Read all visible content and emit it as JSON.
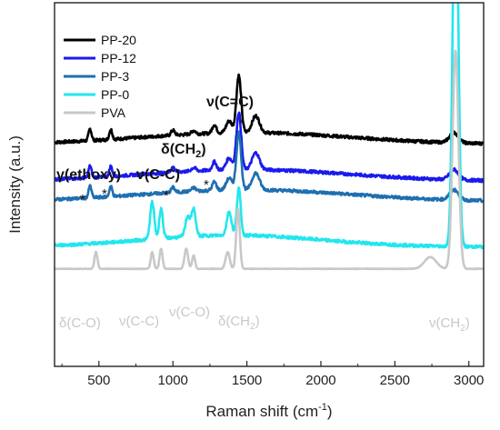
{
  "chart_data": {
    "type": "line",
    "xlabel": "Raman shift (cm",
    "xlabel_sup": "-1",
    "xlabel_end": ")",
    "ylabel": "Intensity (a.u.)",
    "xlim": [
      200,
      3100
    ],
    "xticks": [
      500,
      1000,
      1500,
      2000,
      2500,
      3000
    ],
    "xtick_labels": [
      "500",
      "1000",
      "1500",
      "2000",
      "2500",
      "3000"
    ],
    "y_ticks_shown": false,
    "grid": false,
    "legend_position": "top-left",
    "series": [
      {
        "name": "PP-20",
        "color": "#000000",
        "offset": 6.6,
        "profile": "composite"
      },
      {
        "name": "PP-12",
        "color": "#1a1aee",
        "offset": 5.5,
        "profile": "composite"
      },
      {
        "name": "PP-3",
        "color": "#1f6fb0",
        "offset": 4.9,
        "profile": "composite"
      },
      {
        "name": "PP-0",
        "color": "#22e6ee",
        "offset": 3.55,
        "profile": "pp0"
      },
      {
        "name": "PVA",
        "color": "#c8c8c8",
        "offset": 2.85,
        "profile": "pva"
      }
    ],
    "peaks_cm-1": [
      440,
      580,
      860,
      920,
      1000,
      1140,
      1280,
      1380,
      1445,
      1560,
      2880,
      2910
    ],
    "annotations": {
      "gamma_ethoxy": "γ(ethoxy)",
      "nu_cc_top": "ν(C-C)",
      "delta_ch2_top": "δ(CH",
      "delta_ch2_top_sub": "2",
      "delta_ch2_top_end": ")",
      "nu_c_eq_c": "ν(C=C)",
      "star": "*",
      "delta_co": "δ(C-O)",
      "nu_cc_bottom": "ν(C-C)",
      "nu_co_bottom": "ν(C-O)",
      "delta_ch2_bottom": "δ(CH",
      "delta_ch2_bottom_sub": "2",
      "delta_ch2_bottom_end": ")",
      "nu_ch2": "ν(CH",
      "nu_ch2_sub": "2",
      "nu_ch2_end": ")"
    }
  }
}
